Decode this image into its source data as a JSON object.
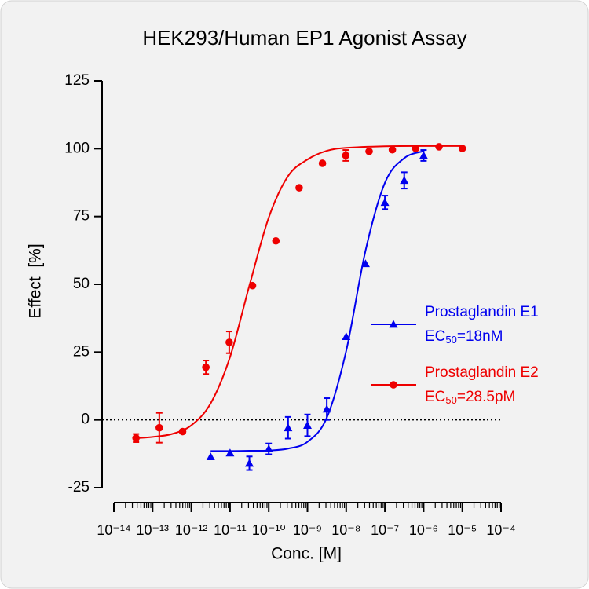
{
  "chart_data": {
    "type": "dose-response",
    "title": "HEK293/Human EP1 Agonist Assay",
    "x_label": "Conc. [M]",
    "y_label": "Effect  [%]",
    "x_log": true,
    "xlim": [
      1e-14,
      0.0001
    ],
    "xticks": [
      {
        "value": 1e-14,
        "label": "10⁻¹⁴"
      },
      {
        "value": 1e-13,
        "label": "10⁻¹³"
      },
      {
        "value": 1e-12,
        "label": "10⁻¹²"
      },
      {
        "value": 1e-11,
        "label": "10⁻¹¹"
      },
      {
        "value": 1e-10,
        "label": "10⁻¹⁰"
      },
      {
        "value": 1e-09,
        "label": "10⁻⁹"
      },
      {
        "value": 1e-08,
        "label": "10⁻⁸"
      },
      {
        "value": 1e-07,
        "label": "10⁻⁷"
      },
      {
        "value": 1e-06,
        "label": "10⁻⁶"
      },
      {
        "value": 1e-05,
        "label": "10⁻⁵"
      },
      {
        "value": 0.0001,
        "label": "10⁻⁴"
      }
    ],
    "ylim": [
      -25,
      125
    ],
    "yticks": [
      -25,
      0,
      25,
      50,
      75,
      100,
      125
    ],
    "reference_line": 0,
    "series": [
      {
        "name": "Prostaglandin E1",
        "marker": "triangle",
        "color": "#0000ee",
        "ec50_label": [
          "EC",
          "50",
          "=18nM"
        ],
        "x": [
          3.16e-12,
          1e-11,
          3.16e-11,
          1e-10,
          3.16e-10,
          1e-09,
          3.16e-09,
          1e-08,
          3.16e-08,
          1e-07,
          3.16e-07,
          1e-06
        ],
        "values": [
          -13.6,
          -12.2,
          -16,
          -10.7,
          -2.9,
          -2,
          4,
          30.7,
          57.6,
          80.2,
          88.3,
          97.5
        ],
        "errors": [
          null,
          null,
          2.5,
          2,
          4,
          4,
          4,
          null,
          null,
          2.5,
          3,
          2
        ],
        "curve": {
          "x": [
            3.16e-12,
            1e-11,
            3.16e-11,
            1e-10,
            3.16e-10,
            1e-09,
            3.16e-09,
            1e-08,
            3.16e-08,
            1e-07,
            3.16e-07,
            1e-06
          ],
          "values": [
            -11.5,
            -11.5,
            -11.4,
            -11.3,
            -10.6,
            -8.1,
            0.8,
            25.4,
            62.4,
            87.4,
            96.5,
            99.1
          ]
        }
      },
      {
        "name": "Prostaglandin E2",
        "marker": "circle",
        "color": "#ee0000",
        "ec50_label": [
          "EC",
          "50",
          "=28.5pM"
        ],
        "x": [
          3.73e-14,
          1.49e-13,
          5.96e-13,
          2.38e-12,
          9.54e-12,
          3.81e-11,
          1.53e-10,
          6.1e-10,
          2.44e-09,
          9.77e-09,
          3.91e-08,
          1.56e-07,
          6.25e-07,
          2.5e-06,
          1e-05
        ],
        "values": [
          -6.7,
          -2.9,
          -4.3,
          19.4,
          28.6,
          49.5,
          66,
          85.6,
          94.6,
          97.5,
          99,
          99.6,
          100.1,
          100.7,
          100.1
        ],
        "errors": [
          1.5,
          5.5,
          null,
          2.5,
          4,
          null,
          null,
          null,
          null,
          2,
          null,
          null,
          null,
          null,
          null
        ],
        "curve": {
          "x": [
            3.16e-14,
            1e-13,
            3.16e-13,
            1e-12,
            3.16e-12,
            1e-11,
            3.16e-11,
            1e-10,
            3.16e-10,
            1e-09,
            3.16e-09,
            1e-08,
            1e-07,
            1e-06,
            1e-05
          ],
          "values": [
            -6.8,
            -6.3,
            -5.2,
            -2,
            6.1,
            23.2,
            49.5,
            74.6,
            89.9,
            96,
            99.2,
            100.3,
            100.9,
            101,
            101
          ]
        }
      }
    ]
  }
}
